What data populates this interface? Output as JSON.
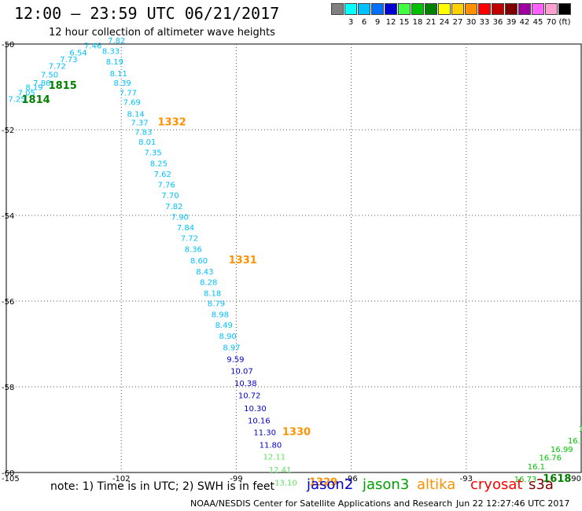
{
  "header": {
    "title": "12:00 — 23:59 UTC 06/21/2017",
    "subtitle": "12 hour collection of altimeter wave heights"
  },
  "legend": {
    "levels": [
      {
        "label": "",
        "color": "#808080"
      },
      {
        "label": "3",
        "color": "#00ffff"
      },
      {
        "label": "6",
        "color": "#00c0ff"
      },
      {
        "label": "9",
        "color": "#0070ff"
      },
      {
        "label": "12",
        "color": "#0000d0"
      },
      {
        "label": "15",
        "color": "#40ff40"
      },
      {
        "label": "18",
        "color": "#00c000"
      },
      {
        "label": "21",
        "color": "#008000"
      },
      {
        "label": "24",
        "color": "#ffff00"
      },
      {
        "label": "27",
        "color": "#ffd000"
      },
      {
        "label": "30",
        "color": "#ff9000"
      },
      {
        "label": "33",
        "color": "#ff0000"
      },
      {
        "label": "36",
        "color": "#c00000"
      },
      {
        "label": "39",
        "color": "#800000"
      },
      {
        "label": "42",
        "color": "#a000a0"
      },
      {
        "label": "45",
        "color": "#ff60ff"
      },
      {
        "label": "70",
        "color": "#ffa0d0"
      },
      {
        "label": "(ft)",
        "color": "#000000"
      }
    ]
  },
  "map": {
    "lon_range": [
      -105,
      -90
    ],
    "lat_range": [
      -60,
      -50
    ],
    "lon_ticks": [
      "-105",
      "-102",
      "-99",
      "-96",
      "-93",
      "-90"
    ],
    "lat_ticks": [
      "-50",
      "-52",
      "-54",
      "-56",
      "-58",
      "-60"
    ],
    "gridlines": "dotted",
    "track_main": [
      {
        "v": "7.82",
        "lon": -102.35,
        "lat": -49.98,
        "c": "#00c0ff"
      },
      {
        "v": "7.46",
        "lon": -102.97,
        "lat": -50.1,
        "c": "#00c0ff"
      },
      {
        "v": "8.33",
        "lon": -102.5,
        "lat": -50.23,
        "c": "#00c0ff"
      },
      {
        "v": "6.54",
        "lon": -103.35,
        "lat": -50.27,
        "c": "#00c0ff"
      },
      {
        "v": "7.73",
        "lon": -103.6,
        "lat": -50.42,
        "c": "#00c0ff"
      },
      {
        "v": "8.19",
        "lon": -102.4,
        "lat": -50.48,
        "c": "#00c0ff"
      },
      {
        "v": "7.72",
        "lon": -103.9,
        "lat": -50.58,
        "c": "#00c0ff"
      },
      {
        "v": "8.11",
        "lon": -102.3,
        "lat": -50.75,
        "c": "#00c0ff"
      },
      {
        "v": "7.50",
        "lon": -104.1,
        "lat": -50.78,
        "c": "#00c0ff"
      },
      {
        "v": "7.86",
        "lon": -104.3,
        "lat": -50.97,
        "c": "#00c0ff"
      },
      {
        "v": "8.39",
        "lon": -102.2,
        "lat": -50.97,
        "c": "#00c0ff"
      },
      {
        "v": "8.19",
        "lon": -104.5,
        "lat": -51.07,
        "c": "#00c0ff"
      },
      {
        "v": "7.05",
        "lon": -104.7,
        "lat": -51.2,
        "c": "#00c0ff"
      },
      {
        "v": "7.77",
        "lon": -102.05,
        "lat": -51.2,
        "c": "#00c0ff"
      },
      {
        "v": "7.25",
        "lon": -104.95,
        "lat": -51.35,
        "c": "#00c0ff"
      },
      {
        "v": "7.69",
        "lon": -101.95,
        "lat": -51.42,
        "c": "#00c0ff"
      },
      {
        "v": "8.14",
        "lon": -101.85,
        "lat": -51.7,
        "c": "#00c0ff"
      },
      {
        "v": "7.37",
        "lon": -101.75,
        "lat": -51.9,
        "c": "#00c0ff"
      },
      {
        "v": "7.83",
        "lon": -101.65,
        "lat": -52.12,
        "c": "#00c0ff"
      },
      {
        "v": "8.01",
        "lon": -101.55,
        "lat": -52.35,
        "c": "#00c0ff"
      },
      {
        "v": "7.35",
        "lon": -101.4,
        "lat": -52.6,
        "c": "#00c0ff"
      },
      {
        "v": "8.25",
        "lon": -101.25,
        "lat": -52.85,
        "c": "#00c0ff"
      },
      {
        "v": "7.62",
        "lon": -101.15,
        "lat": -53.1,
        "c": "#00c0ff"
      },
      {
        "v": "7.76",
        "lon": -101.05,
        "lat": -53.35,
        "c": "#00c0ff"
      },
      {
        "v": "7.70",
        "lon": -100.95,
        "lat": -53.6,
        "c": "#00c0ff"
      },
      {
        "v": "7.82",
        "lon": -100.85,
        "lat": -53.85,
        "c": "#00c0ff"
      },
      {
        "v": "7.90",
        "lon": -100.7,
        "lat": -54.1,
        "c": "#00c0ff"
      },
      {
        "v": "7.84",
        "lon": -100.55,
        "lat": -54.35,
        "c": "#00c0ff"
      },
      {
        "v": "7.72",
        "lon": -100.45,
        "lat": -54.6,
        "c": "#00c0ff"
      },
      {
        "v": "8.36",
        "lon": -100.35,
        "lat": -54.85,
        "c": "#00c0ff"
      },
      {
        "v": "8.60",
        "lon": -100.2,
        "lat": -55.12,
        "c": "#00c0ff"
      },
      {
        "v": "8.43",
        "lon": -100.05,
        "lat": -55.38,
        "c": "#00c0ff"
      },
      {
        "v": "8.28",
        "lon": -99.95,
        "lat": -55.62,
        "c": "#00c0ff"
      },
      {
        "v": "8.18",
        "lon": -99.85,
        "lat": -55.88,
        "c": "#00c0ff"
      },
      {
        "v": "8.79",
        "lon": -99.75,
        "lat": -56.12,
        "c": "#00c0ff"
      },
      {
        "v": "8.98",
        "lon": -99.65,
        "lat": -56.38,
        "c": "#00c0ff"
      },
      {
        "v": "8.49",
        "lon": -99.55,
        "lat": -56.62,
        "c": "#00c0ff"
      },
      {
        "v": "8.90",
        "lon": -99.45,
        "lat": -56.88,
        "c": "#00c0ff"
      },
      {
        "v": "8.97",
        "lon": -99.35,
        "lat": -57.15,
        "c": "#00c0ff"
      },
      {
        "v": "9.59",
        "lon": -99.25,
        "lat": -57.42,
        "c": "#0000d0"
      },
      {
        "v": "10.07",
        "lon": -99.15,
        "lat": -57.7,
        "c": "#0000d0"
      },
      {
        "v": "10.38",
        "lon": -99.05,
        "lat": -57.98,
        "c": "#0000d0"
      },
      {
        "v": "10.72",
        "lon": -98.95,
        "lat": -58.27,
        "c": "#0000d0"
      },
      {
        "v": "10.30",
        "lon": -98.8,
        "lat": -58.57,
        "c": "#0000d0"
      },
      {
        "v": "10.16",
        "lon": -98.7,
        "lat": -58.85,
        "c": "#0000d0"
      },
      {
        "v": "11.30",
        "lon": -98.55,
        "lat": -59.13,
        "c": "#0000d0"
      },
      {
        "v": "11.80",
        "lon": -98.4,
        "lat": -59.42,
        "c": "#0000d0"
      },
      {
        "v": "12.11",
        "lon": -98.3,
        "lat": -59.7,
        "c": "#60e060"
      },
      {
        "v": "12.41",
        "lon": -98.15,
        "lat": -60.0,
        "c": "#60e060"
      },
      {
        "v": "13.10",
        "lon": -98.0,
        "lat": -60.3,
        "c": "#60e060"
      }
    ],
    "track_se": [
      {
        "v": "15",
        "lon": -90.07,
        "lat": -59.05,
        "c": "#00c000"
      },
      {
        "v": "16.57",
        "lon": -90.35,
        "lat": -59.32,
        "c": "#00c000"
      },
      {
        "v": "16.99",
        "lon": -90.8,
        "lat": -59.52,
        "c": "#00c000"
      },
      {
        "v": "16.76",
        "lon": -91.1,
        "lat": -59.72,
        "c": "#00c000"
      },
      {
        "v": "16.1",
        "lon": -91.4,
        "lat": -59.93,
        "c": "#00c000"
      },
      {
        "v": "16.73",
        "lon": -91.75,
        "lat": -60.22,
        "c": "#00c000"
      }
    ],
    "time_labels": [
      {
        "t": "1815",
        "lon": -103.9,
        "lat": -51.05,
        "c": "#008000"
      },
      {
        "t": "1814",
        "lon": -104.6,
        "lat": -51.38,
        "c": "#008000"
      },
      {
        "t": "1332",
        "lon": -101.05,
        "lat": -51.9,
        "c": "#ff9000"
      },
      {
        "t": "1331",
        "lon": -99.2,
        "lat": -55.12,
        "c": "#ff9000"
      },
      {
        "t": "1330",
        "lon": -97.8,
        "lat": -59.13,
        "c": "#ff9000"
      },
      {
        "t": "1329",
        "lon": -97.1,
        "lat": -60.3,
        "c": "#ff9000"
      },
      {
        "t": "1618",
        "lon": -91.0,
        "lat": -60.22,
        "c": "#008000"
      }
    ]
  },
  "footer": {
    "note": "note: 1) Time is in UTC; 2) SWH is in feet",
    "satellites": [
      {
        "name": "jason2",
        "color": "#0000d0"
      },
      {
        "name": "jason3",
        "color": "#00a000"
      },
      {
        "name": "altika",
        "color": "#ff9000"
      },
      {
        "name": "cryosat",
        "color": "#ff0000"
      },
      {
        "name": "s3a",
        "color": "#800000"
      }
    ],
    "credit": "NOAA/NESDIS Center for Satellite Applications and Research",
    "timestamp": "Jun 22 12:27:46 UTC 2017"
  }
}
